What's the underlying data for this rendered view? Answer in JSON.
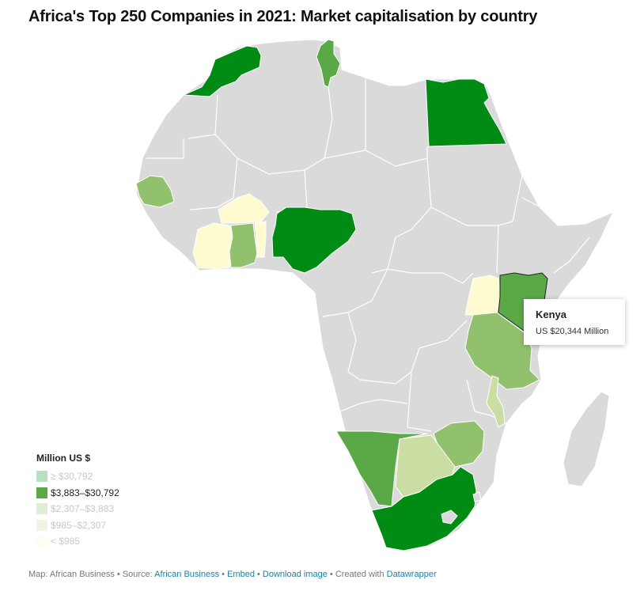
{
  "title": "Africa's Top 250 Companies in 2021: Market capitalisation by country",
  "colors": {
    "land": "#dadada",
    "border": "#ffffff",
    "tier1": "#008b15",
    "tier2": "#5aa846",
    "tier3": "#92c16e",
    "tier4": "#cadea3",
    "tier5": "#fffbd1"
  },
  "tooltip": {
    "title": "Kenya",
    "value": "US $20,344 Million"
  },
  "legend": {
    "title": "Million US $",
    "items": [
      {
        "label": "≥ $30,792",
        "color": "#008b15",
        "active": false
      },
      {
        "label": "$3,883–$30,792",
        "color": "#5aa846",
        "active": true
      },
      {
        "label": "$2,307–$3,883",
        "color": "#92c16e",
        "active": false
      },
      {
        "label": "$985–$2,307",
        "color": "#cadea3",
        "active": false
      },
      {
        "label": "< $985",
        "color": "#fffbd1",
        "active": false
      }
    ]
  },
  "footer": {
    "map_by": "Map: African Business",
    "source_label": "Source: ",
    "source_link": "African Business",
    "embed": "Embed",
    "download": "Download image",
    "created_with": "Created with ",
    "tool": "Datawrapper",
    "separator": " • "
  }
}
